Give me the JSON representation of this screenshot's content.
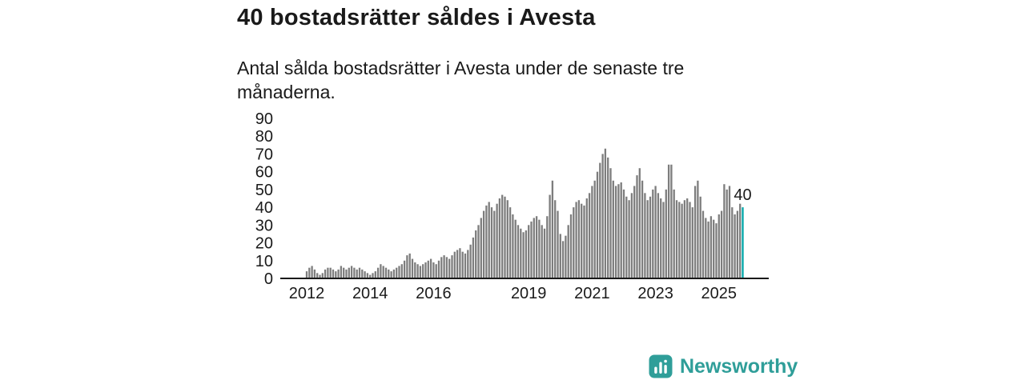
{
  "header": {
    "title": "40 bostadsrätter såldes i Avesta",
    "subtitle": "Antal sålda bostadsrätter i Avesta under de senaste tre månaderna."
  },
  "footer": {
    "brand": "Newsworthy"
  },
  "colors": {
    "text": "#1a1a1a",
    "bar": "#7d7d7d",
    "accent": "#00a5a8",
    "brand": "#2f9e99",
    "axis_line": "#1a1a1a"
  },
  "chart_data": {
    "type": "bar",
    "title": "40 bostadsrätter såldes i Avesta",
    "subtitle": "Antal sålda bostadsrätter i Avesta under de senaste tre månaderna.",
    "start_year": 2012,
    "points_per_year": 12,
    "ylim": [
      0,
      90
    ],
    "y_ticks": [
      0,
      10,
      20,
      30,
      40,
      50,
      60,
      70,
      80,
      90
    ],
    "x_tick_years": [
      2012,
      2014,
      2016,
      2019,
      2021,
      2023,
      2025
    ],
    "grid": false,
    "legend": "none",
    "highlight_last": true,
    "last_value_label": "40",
    "values": [
      4,
      6,
      7,
      5,
      3,
      2,
      3,
      5,
      6,
      6,
      5,
      4,
      5,
      7,
      6,
      5,
      6,
      7,
      6,
      5,
      6,
      5,
      4,
      3,
      2,
      3,
      4,
      6,
      8,
      7,
      6,
      5,
      4,
      5,
      6,
      7,
      8,
      10,
      13,
      14,
      11,
      9,
      8,
      7,
      8,
      9,
      10,
      11,
      9,
      8,
      10,
      12,
      13,
      12,
      11,
      13,
      15,
      16,
      17,
      15,
      14,
      16,
      19,
      23,
      27,
      30,
      34,
      38,
      41,
      43,
      40,
      38,
      42,
      45,
      47,
      46,
      44,
      40,
      36,
      33,
      30,
      28,
      26,
      27,
      30,
      32,
      34,
      35,
      33,
      30,
      28,
      35,
      47,
      55,
      44,
      38,
      25,
      21,
      24,
      30,
      36,
      40,
      43,
      44,
      42,
      41,
      45,
      48,
      52,
      55,
      60,
      65,
      70,
      73,
      68,
      62,
      55,
      52,
      53,
      54,
      50,
      46,
      44,
      48,
      52,
      58,
      62,
      55,
      48,
      44,
      46,
      50,
      52,
      48,
      45,
      43,
      50,
      64,
      64,
      50,
      44,
      43,
      42,
      44,
      45,
      43,
      40,
      52,
      55,
      46,
      38,
      34,
      32,
      35,
      33,
      31,
      36,
      38,
      53,
      50,
      52,
      40,
      36,
      38,
      42,
      40
    ]
  }
}
